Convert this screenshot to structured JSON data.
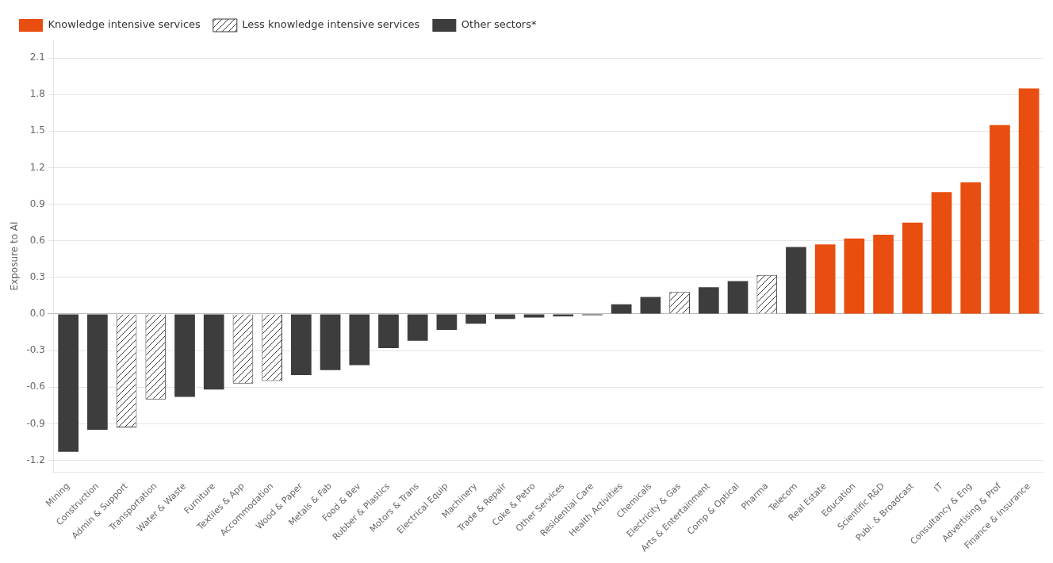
{
  "chart_data": {
    "type": "bar",
    "ylabel": "Exposure to AI",
    "categories": [
      "Mining",
      "Construction",
      "Admin & Support",
      "Transportation",
      "Water & Waste",
      "Furniture",
      "Textiles & App",
      "Accommodation",
      "Wood & Paper",
      "Metals & Fab",
      "Food & Bev",
      "Rubber & Plastics",
      "Motors & Trans",
      "Electrical Equip",
      "Machinery",
      "Trade & Repair",
      "Coke & Petro",
      "Other Services",
      "Residential Care",
      "Health Activities",
      "Chemicals",
      "Electricity & Gas",
      "Arts & Entertainment",
      "Comp & Optical",
      "Pharma",
      "Telecom",
      "Real Estate",
      "Education",
      "Scientific R&D",
      "Publ. & Broadcast",
      "IT",
      "Consultancy & Eng",
      "Advertising & Prof",
      "Finance & Insurance"
    ],
    "series": [
      {
        "name": "Knowledge intensive services",
        "color": "#e84e0f",
        "values": [
          null,
          null,
          null,
          null,
          null,
          null,
          null,
          null,
          null,
          null,
          null,
          null,
          null,
          null,
          null,
          null,
          null,
          null,
          null,
          null,
          null,
          null,
          null,
          null,
          null,
          null,
          0.57,
          0.62,
          0.65,
          0.75,
          1.0,
          1.08,
          1.55,
          1.85
        ]
      },
      {
        "name": "Less knowledge intensive services",
        "color": "#3d3d3d",
        "marker": "hatch",
        "values": [
          null,
          null,
          -0.93,
          -0.7,
          null,
          null,
          -0.57,
          -0.55,
          null,
          null,
          null,
          null,
          null,
          null,
          null,
          null,
          null,
          null,
          null,
          null,
          null,
          0.18,
          null,
          null,
          0.32,
          null,
          null,
          null,
          null,
          null,
          null,
          null,
          null,
          null
        ]
      },
      {
        "name": "Other sectors*",
        "color": "#3d3d3d",
        "values": [
          -1.13,
          -0.95,
          null,
          null,
          -0.68,
          -0.62,
          null,
          null,
          -0.5,
          -0.46,
          -0.42,
          -0.28,
          -0.22,
          -0.13,
          -0.08,
          -0.04,
          -0.03,
          -0.02,
          -0.01,
          0.08,
          0.14,
          null,
          0.22,
          0.27,
          null,
          0.55,
          null,
          null,
          null,
          null,
          null,
          null,
          null,
          null
        ]
      }
    ],
    "ylim": [
      -1.3,
      2.25
    ],
    "yticks": [
      -1.2,
      -0.9,
      -0.6,
      -0.3,
      {
        "value": 0,
        "label": "0.0"
      },
      0.3,
      0.6,
      0.9,
      1.2,
      1.5,
      1.8,
      2.1
    ],
    "grid": true,
    "legend": "upper left"
  }
}
